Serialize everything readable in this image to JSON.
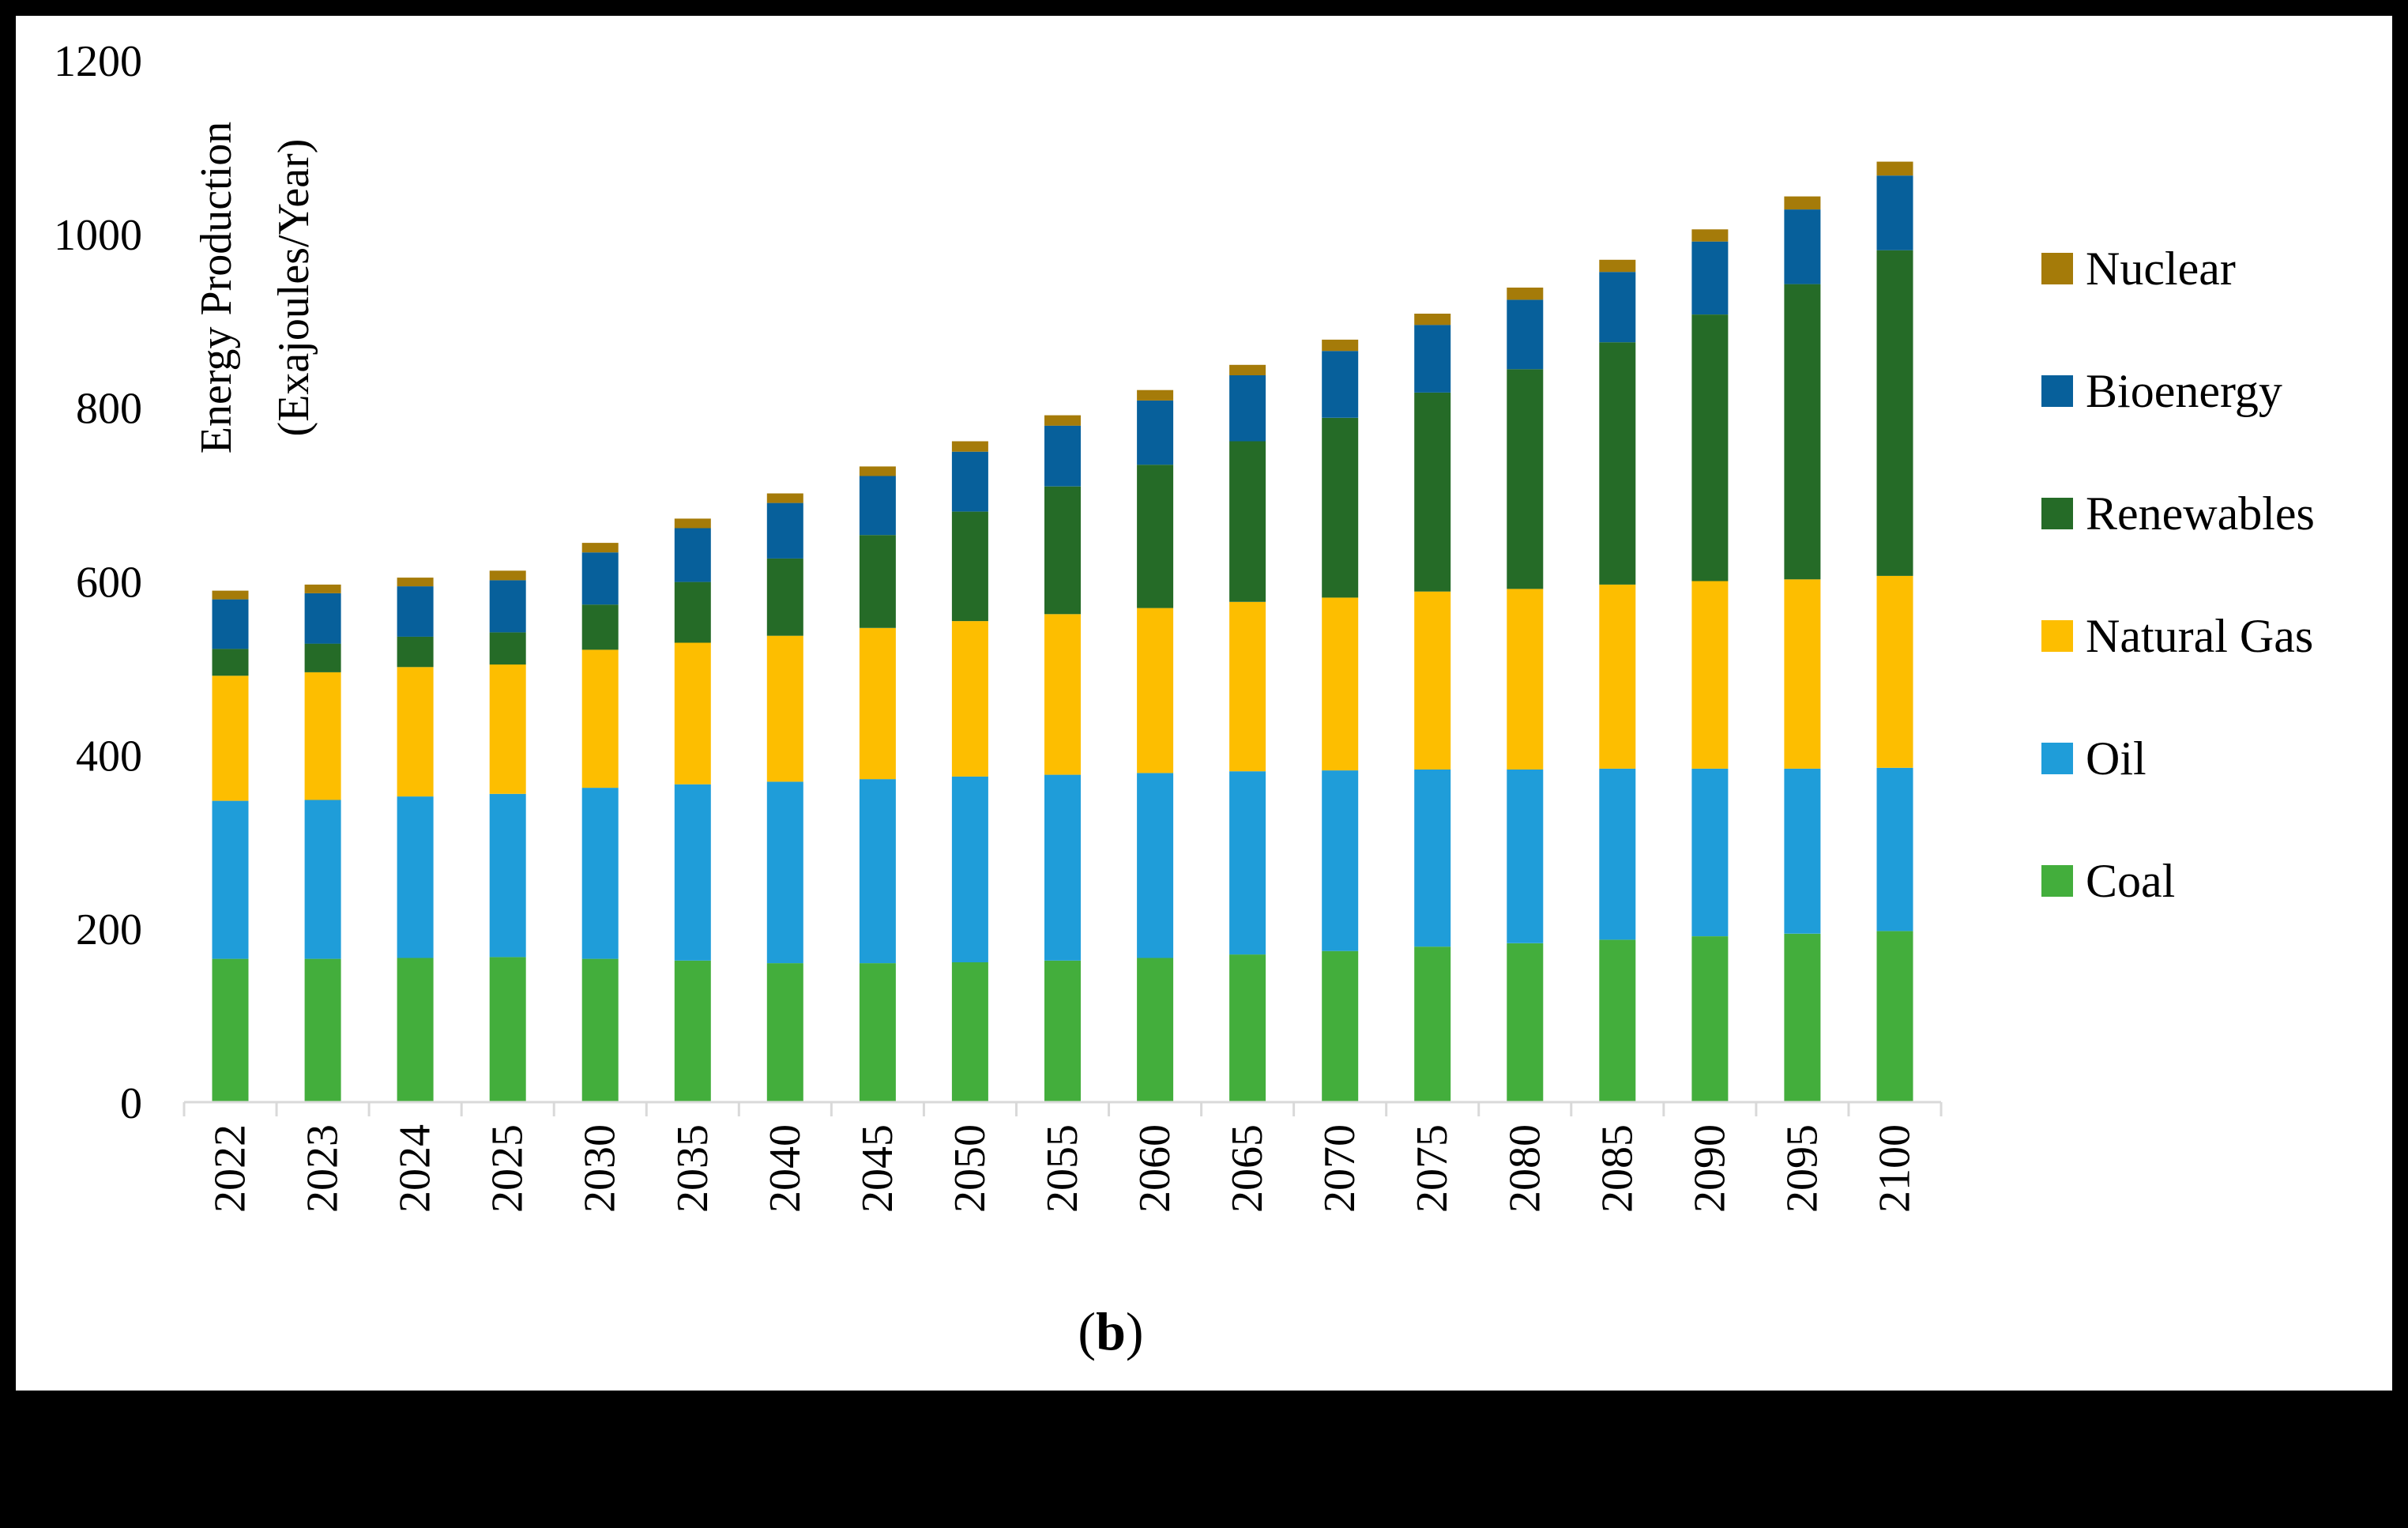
{
  "chart_data": {
    "type": "bar",
    "stacked": true,
    "title": "",
    "panel_label_open": "(",
    "panel_label": "b",
    "panel_label_close": ")",
    "ylabel_line1": "Energy Production",
    "ylabel_line2": "(Exajoules/Year)",
    "xlabel": "",
    "ylim": [
      0,
      1200
    ],
    "yticks": [
      "0",
      "200",
      "400",
      "600",
      "800",
      "1000",
      "1200"
    ],
    "legend_position": "right",
    "grid": false,
    "categories": [
      "2022",
      "2023",
      "2024",
      "2025",
      "2030",
      "2035",
      "2040",
      "2045",
      "2050",
      "2055",
      "2060",
      "2065",
      "2070",
      "2075",
      "2080",
      "2085",
      "2090",
      "2095",
      "2100"
    ],
    "series": [
      {
        "name": "Coal",
        "color": "#43ae3c",
        "values": [
          165,
          165,
          166,
          167,
          165,
          163,
          160,
          160,
          161,
          163,
          166,
          170,
          174,
          179,
          183,
          187,
          191,
          194,
          197
        ]
      },
      {
        "name": "Oil",
        "color": "#1f9dd9",
        "values": [
          182,
          183,
          186,
          188,
          197,
          203,
          209,
          212,
          214,
          214,
          213,
          211,
          208,
          204,
          200,
          197,
          193,
          190,
          188
        ]
      },
      {
        "name": "Natural Gas",
        "color": "#fdbe00",
        "values": [
          144,
          147,
          149,
          149,
          159,
          163,
          168,
          174,
          179,
          185,
          190,
          195,
          199,
          205,
          208,
          212,
          216,
          218,
          221
        ]
      },
      {
        "name": "Renewables",
        "color": "#256b27",
        "values": [
          31,
          33,
          35,
          37,
          52,
          70,
          89,
          107,
          126,
          147,
          165,
          185,
          207,
          229,
          253,
          279,
          307,
          340,
          375
        ]
      },
      {
        "name": "Bioenergy",
        "color": "#07609b",
        "values": [
          57,
          58,
          58,
          60,
          60,
          62,
          64,
          68,
          69,
          70,
          74,
          76,
          77,
          78,
          80,
          81,
          84,
          86,
          86
        ]
      },
      {
        "name": "Nuclear",
        "color": "#a57b09",
        "values": [
          10,
          10,
          10,
          11,
          11,
          11,
          11,
          11,
          12,
          12,
          12,
          12,
          13,
          13,
          14,
          14,
          14,
          15,
          16
        ]
      }
    ]
  }
}
